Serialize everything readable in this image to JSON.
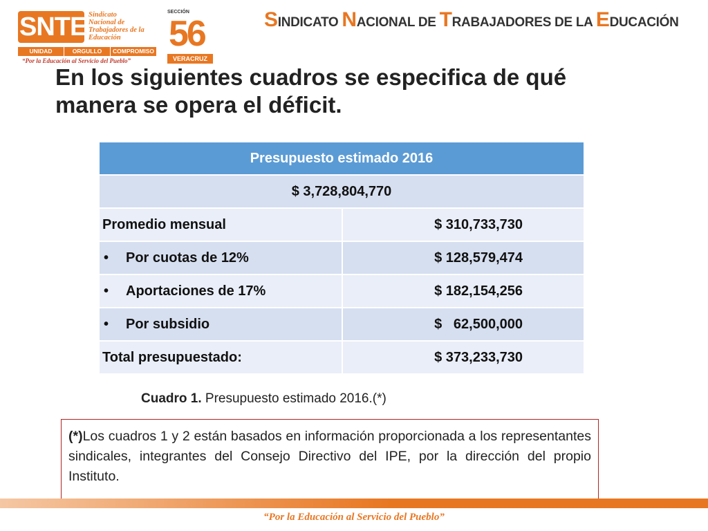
{
  "logo": {
    "snte": "SNTE",
    "sub_lines": [
      "Sindicato",
      "Nacional de",
      "Trabajadores de la",
      "Educación"
    ],
    "bar": [
      "UNIDAD",
      "ORGULLO",
      "COMPROMISO"
    ],
    "tagline": "“Por la Educación al Servicio del Pueblo”"
  },
  "seccion": {
    "label": "SECCIÓN",
    "number": "56",
    "state": "VERACRUZ"
  },
  "header": {
    "parts": [
      {
        "cap": "S",
        "rest": "INDICATO "
      },
      {
        "cap": "N",
        "rest": "ACIONAL DE "
      },
      {
        "cap": "T",
        "rest": "RABAJADORES DE LA "
      },
      {
        "cap": "E",
        "rest": "DUCACIÓN"
      }
    ]
  },
  "title": "En los siguientes cuadros se especifica de qué manera se opera el déficit.",
  "table": {
    "header": "Presupuesto estimado 2016",
    "total": "$ 3,728,804,770",
    "rows": [
      {
        "label": "Promedio mensual",
        "bullet": false,
        "value": "$ 310,733,730"
      },
      {
        "label": "Por cuotas de 12%",
        "bullet": true,
        "value": "$ 128,579,474"
      },
      {
        "label": "Aportaciones de 17%",
        "bullet": true,
        "value": "$ 182,154,256"
      },
      {
        "label": "Por subsidio",
        "bullet": true,
        "value": "$   62,500,000"
      },
      {
        "label": "Total presupuestado:",
        "bullet": false,
        "value": "$ 373,233,730"
      }
    ]
  },
  "caption": {
    "bold": "Cuadro 1.",
    "text": " Presupuesto estimado 2016.(*)"
  },
  "note": {
    "bold": "(*)",
    "text": "Los cuadros 1 y  2 están basados en información proporcionada a los representantes sindicales, integrantes del Consejo Directivo del IPE, por la dirección del propio Instituto."
  },
  "footer": "“Por la Educación al Servicio del Pueblo”",
  "colors": {
    "accent": "#e87722",
    "table_header": "#5b9bd5",
    "row_light": "#e9eef8",
    "row_dark": "#d6dff0",
    "note_border": "#b22222"
  }
}
